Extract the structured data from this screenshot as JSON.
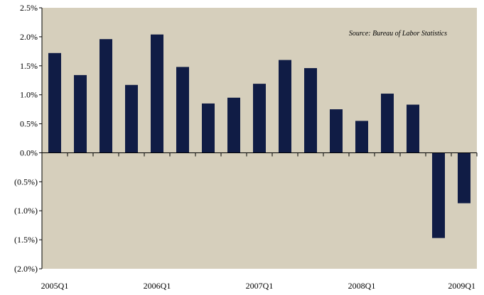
{
  "chart_data": {
    "type": "bar",
    "title": "",
    "xlabel": "",
    "ylabel": "",
    "ylim": [
      -2.0,
      2.5
    ],
    "y_ticks": [
      -2.0,
      -1.5,
      -1.0,
      -0.5,
      0.0,
      0.5,
      1.0,
      1.5,
      2.0,
      2.5
    ],
    "y_tick_labels": [
      "(2.0%)",
      "(1.5%)",
      "(1.0%)",
      "(0.5%)",
      "0.0%",
      "0.5%",
      "1.0%",
      "1.5%",
      "2.0%",
      "2.5%"
    ],
    "categories": [
      "2005Q1",
      "2005Q2",
      "2005Q3",
      "2005Q4",
      "2006Q1",
      "2006Q2",
      "2006Q3",
      "2006Q4",
      "2007Q1",
      "2007Q2",
      "2007Q3",
      "2007Q4",
      "2008Q1",
      "2008Q2",
      "2008Q3",
      "2008Q4",
      "2009Q1"
    ],
    "shown_x_labels": [
      "2005Q1",
      "2006Q1",
      "2007Q1",
      "2008Q1",
      "2009Q1"
    ],
    "values": [
      1.72,
      1.34,
      1.96,
      1.17,
      2.04,
      1.48,
      0.85,
      0.95,
      1.19,
      1.6,
      1.46,
      0.75,
      0.55,
      1.02,
      0.83,
      -1.47,
      -0.87
    ],
    "grid": false,
    "annotation": "Source: Bureau of Labor Statistics",
    "colors": {
      "plot_background": "#d6cfbc",
      "bar": "#101c45",
      "axis": "#000000"
    }
  }
}
